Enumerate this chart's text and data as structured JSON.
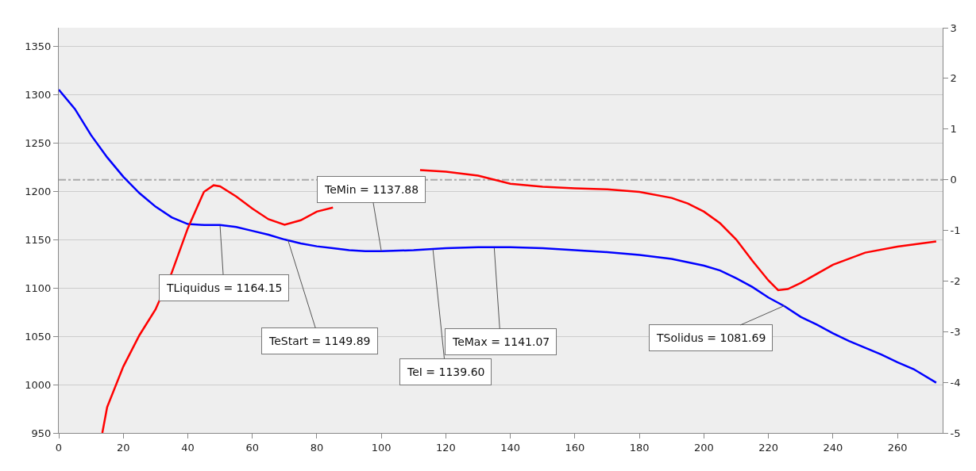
{
  "chart_data": {
    "type": "line",
    "grid": "y",
    "marker": "none",
    "line_style": "solid",
    "xlim": [
      0,
      274
    ],
    "xticks": [
      0,
      20,
      40,
      60,
      80,
      100,
      120,
      140,
      160,
      180,
      200,
      220,
      240,
      260
    ],
    "ylim": [
      950,
      1369
    ],
    "yticks": [
      950,
      1000,
      1050,
      1100,
      1150,
      1200,
      1250,
      1300,
      1350
    ],
    "y2lim": [
      -5,
      3
    ],
    "y2ticks": [
      -5,
      -4,
      -3,
      -2,
      -1,
      0,
      1,
      2,
      3
    ],
    "series": [
      {
        "color": "#0000ff",
        "x": [
          0,
          5,
          10,
          15,
          20,
          25,
          30,
          35,
          40,
          45,
          50,
          55,
          60,
          65,
          70,
          75,
          80,
          85,
          90,
          95,
          100,
          110,
          115,
          120,
          130,
          140,
          150,
          160,
          170,
          180,
          190,
          200,
          205,
          210,
          215,
          220,
          225,
          230,
          235,
          240,
          245,
          250,
          255,
          260,
          265,
          272
        ],
        "values": [
          1305,
          1285,
          1258,
          1235,
          1215,
          1198,
          1184,
          1173,
          1166,
          1165,
          1165,
          1163,
          1159,
          1155,
          1150,
          1146,
          1143,
          1141,
          1139,
          1138,
          1138,
          1139,
          1140,
          1141,
          1142,
          1142,
          1141,
          1139,
          1137,
          1134,
          1130,
          1123,
          1118,
          1110,
          1101,
          1090,
          1081,
          1070,
          1062,
          1053,
          1045,
          1038,
          1031,
          1023,
          1016,
          1002
        ]
      },
      {
        "color": "#ff0000",
        "axis": "y2",
        "x": [
          13.5,
          15,
          20,
          25,
          30,
          35,
          40,
          45,
          48,
          50,
          55,
          60,
          65,
          70,
          75,
          80,
          85,
          88,
          110,
          112,
          120,
          130,
          140,
          150,
          160,
          170,
          180,
          190,
          195,
          200,
          205,
          210,
          215,
          220,
          223,
          226,
          230,
          240,
          250,
          260,
          272
        ],
        "values": [
          -5,
          -4.49,
          -3.69,
          -3.07,
          -2.56,
          -1.84,
          -0.96,
          -0.24,
          -0.11,
          -0.13,
          -0.33,
          -0.57,
          -0.78,
          -0.89,
          -0.8,
          -0.63,
          -0.55,
          null,
          null,
          0.19,
          0.16,
          0.08,
          -0.08,
          -0.14,
          -0.17,
          -0.19,
          -0.24,
          -0.36,
          -0.47,
          -0.63,
          -0.86,
          -1.18,
          -1.6,
          -1.99,
          -2.18,
          -2.16,
          -2.04,
          -1.68,
          -1.44,
          -1.32,
          -1.22
        ]
      }
    ],
    "ref_lines": [
      {
        "axis": "y2",
        "value": 0,
        "color": "#aaaaaa",
        "line_style": "dashed"
      }
    ],
    "annotations": [
      {
        "text": "TLiquidus = 1164.15",
        "x": 50,
        "y": 1164.15
      },
      {
        "text": "TeStart = 1149.89",
        "x": 71,
        "y": 1149.89
      },
      {
        "text": "TeMin = 1137.88",
        "x": 100,
        "y": 1137.88
      },
      {
        "text": "TeI = 1139.60",
        "x": 116,
        "y": 1139.6
      },
      {
        "text": "TeMax = 1141.07",
        "x": 135,
        "y": 1141.07
      },
      {
        "text": "TSolidus = 1081.69",
        "x": 225,
        "y": 1081.69
      }
    ]
  }
}
